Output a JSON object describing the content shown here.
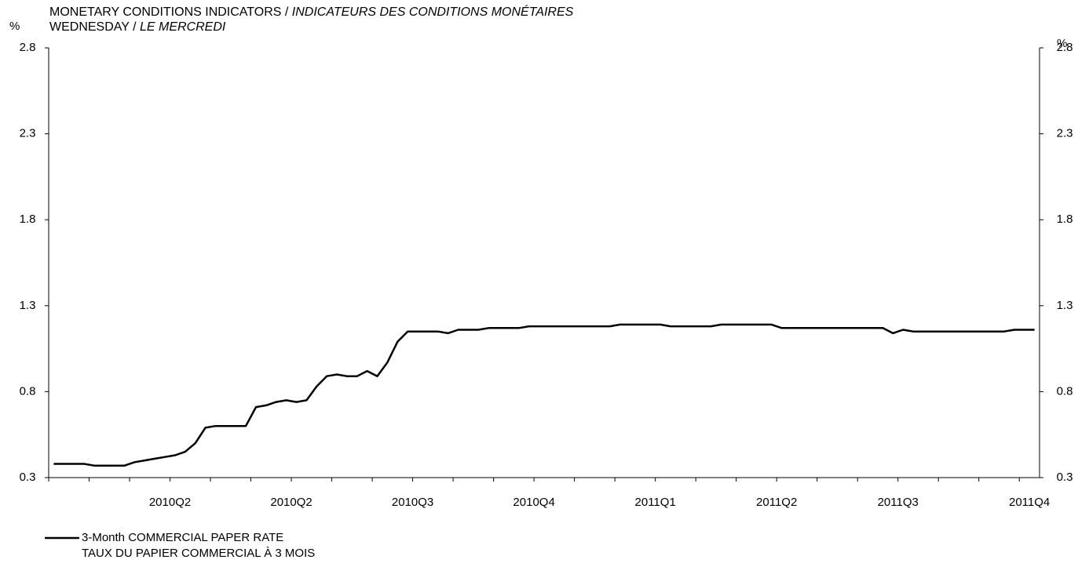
{
  "chart_data": {
    "type": "line",
    "title": "MONETARY CONDITIONS INDICATORS /",
    "title_fr": "INDICATEURS DES CONDITIONS MONÉTAIRES",
    "subtitle": "WEDNESDAY /",
    "subtitle_fr": "LE MERCREDI",
    "y_label": "%",
    "y2_label": "%",
    "categories": [
      null,
      null,
      null,
      null,
      null,
      null,
      null,
      null,
      null,
      null,
      null,
      null,
      "2010Q2",
      null,
      null,
      null,
      null,
      null,
      null,
      null,
      null,
      null,
      null,
      null,
      "2010Q2",
      null,
      null,
      null,
      null,
      null,
      null,
      null,
      null,
      null,
      null,
      null,
      "2010Q3",
      null,
      null,
      null,
      null,
      null,
      null,
      null,
      null,
      null,
      null,
      null,
      "2010Q4",
      null,
      null,
      null,
      null,
      null,
      null,
      null,
      null,
      null,
      null,
      null,
      "2011Q1",
      null,
      null,
      null,
      null,
      null,
      null,
      null,
      null,
      null,
      null,
      null,
      "2011Q2",
      null,
      null,
      null,
      null,
      null,
      null,
      null,
      null,
      null,
      null,
      null,
      "2011Q3",
      null,
      null,
      null,
      null,
      null,
      null,
      null,
      null,
      null,
      null,
      null,
      null,
      "2011Q4"
    ],
    "series": [
      {
        "name": "3-Month COMMERCIAL PAPER RATE",
        "name_fr": "TAUX DU PAPIER COMMERCIAL À 3 MOIS",
        "color": "#000000",
        "values": [
          0.38,
          0.38,
          0.38,
          0.38,
          0.37,
          0.37,
          0.37,
          0.37,
          0.39,
          0.4,
          0.41,
          0.42,
          0.43,
          0.45,
          0.5,
          0.59,
          0.6,
          0.6,
          0.6,
          0.6,
          0.71,
          0.72,
          0.74,
          0.75,
          0.74,
          0.75,
          0.83,
          0.89,
          0.9,
          0.89,
          0.89,
          0.92,
          0.89,
          0.97,
          1.09,
          1.15,
          1.15,
          1.15,
          1.15,
          1.14,
          1.16,
          1.16,
          1.16,
          1.17,
          1.17,
          1.17,
          1.17,
          1.18,
          1.18,
          1.18,
          1.18,
          1.18,
          1.18,
          1.18,
          1.18,
          1.18,
          1.19,
          1.19,
          1.19,
          1.19,
          1.19,
          1.18,
          1.18,
          1.18,
          1.18,
          1.18,
          1.19,
          1.19,
          1.19,
          1.19,
          1.19,
          1.19,
          1.17,
          1.17,
          1.17,
          1.17,
          1.17,
          1.17,
          1.17,
          1.17,
          1.17,
          1.17,
          1.17,
          1.14,
          1.16,
          1.15,
          1.15,
          1.15,
          1.15,
          1.15,
          1.15,
          1.15,
          1.15,
          1.15,
          1.15,
          1.16,
          1.16,
          1.16
        ]
      }
    ],
    "ylim": [
      0.3,
      2.8
    ],
    "yticks": [
      0.3,
      0.8,
      1.3,
      1.8,
      2.3,
      2.8
    ],
    "y2lim": [
      0.3,
      2.8
    ],
    "y2ticks": [
      0.3,
      0.8,
      1.3,
      1.8,
      2.3,
      2.8
    ],
    "grid": false
  }
}
